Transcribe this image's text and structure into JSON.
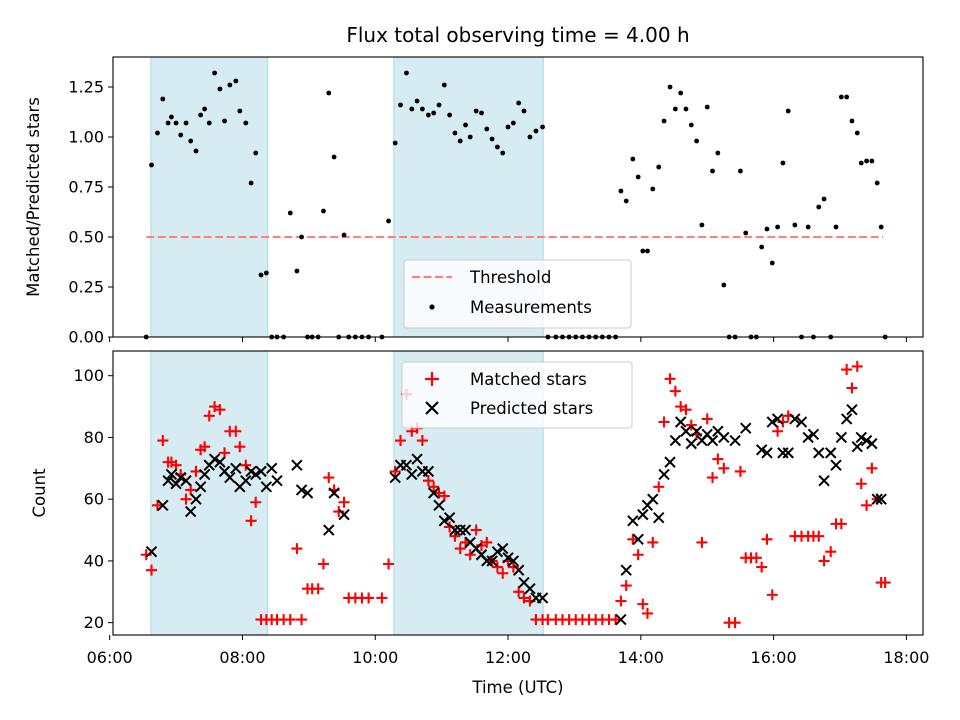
{
  "chart_data": {
    "type": "scatter",
    "title": "Flux total observing time = 4.00 h",
    "xlabel": "Time (UTC)",
    "x_ticks": [
      "06:00",
      "08:00",
      "10:00",
      "12:00",
      "14:00",
      "16:00",
      "18:00"
    ],
    "x_range_hours": [
      6.05,
      18.25
    ],
    "shaded_intervals_hours": [
      [
        6.62,
        8.38
      ],
      [
        10.28,
        12.53
      ]
    ],
    "panels": [
      {
        "ylabel": "Matched/Predicted stars",
        "ylim": [
          0,
          1.4
        ],
        "y_ticks": [
          "0.00",
          "0.25",
          "0.50",
          "0.75",
          "1.00",
          "1.25"
        ],
        "legend": {
          "placement": "lower-center",
          "entries": [
            "Threshold",
            "Measurements"
          ]
        },
        "threshold": {
          "name": "Threshold",
          "value": 0.5,
          "x_range_hours": [
            6.55,
            17.65
          ],
          "color": "#ff7f7f",
          "style": "dashed"
        },
        "measurements": {
          "name": "Measurements",
          "color": "#000000",
          "x": [
            6.55,
            6.63,
            6.72,
            6.8,
            6.88,
            6.93,
            7.0,
            7.07,
            7.15,
            7.22,
            7.3,
            7.37,
            7.43,
            7.5,
            7.58,
            7.66,
            7.73,
            7.81,
            7.9,
            7.96,
            8.05,
            8.13,
            8.2,
            8.28,
            8.36,
            8.44,
            8.52,
            8.62,
            8.72,
            8.82,
            8.89,
            8.98,
            9.05,
            9.14,
            9.22,
            9.3,
            9.38,
            9.45,
            9.53,
            9.6,
            9.7,
            9.8,
            9.9,
            10.1,
            10.2,
            10.3,
            10.38,
            10.47,
            10.55,
            10.63,
            10.71,
            10.8,
            10.88,
            10.96,
            11.04,
            11.12,
            11.2,
            11.28,
            11.36,
            11.43,
            11.52,
            11.6,
            11.68,
            11.76,
            11.84,
            11.92,
            12.0,
            12.08,
            12.16,
            12.24,
            12.33,
            12.42,
            12.52,
            12.6,
            12.72,
            12.82,
            12.92,
            13.02,
            13.12,
            13.22,
            13.32,
            13.42,
            13.52,
            13.62,
            13.7,
            13.78,
            13.88,
            13.96,
            14.03,
            14.1,
            14.18,
            14.27,
            14.35,
            14.44,
            14.52,
            14.6,
            14.68,
            14.76,
            14.84,
            14.92,
            15.0,
            15.08,
            15.16,
            15.25,
            15.33,
            15.42,
            15.5,
            15.58,
            15.66,
            15.74,
            15.82,
            15.9,
            15.98,
            16.06,
            16.14,
            16.22,
            16.32,
            16.42,
            16.52,
            16.6,
            16.68,
            16.76,
            16.86,
            16.94,
            17.02,
            17.1,
            17.18,
            17.26,
            17.32,
            17.4,
            17.48,
            17.56,
            17.62,
            17.68
          ],
          "y": [
            0.0,
            0.86,
            1.02,
            1.19,
            1.07,
            1.1,
            1.07,
            1.01,
            1.07,
            0.98,
            0.93,
            1.11,
            1.14,
            1.07,
            1.32,
            1.24,
            1.08,
            1.26,
            1.28,
            1.13,
            1.07,
            0.77,
            0.92,
            0.31,
            0.32,
            0.0,
            0.0,
            0.0,
            0.62,
            0.33,
            0.5,
            0.0,
            0.0,
            0.0,
            0.63,
            1.22,
            0.9,
            0.0,
            0.51,
            0.0,
            0.0,
            0.0,
            0.0,
            0.0,
            0.58,
            0.97,
            1.16,
            1.32,
            1.14,
            1.18,
            1.14,
            1.11,
            1.12,
            1.16,
            1.26,
            1.11,
            1.02,
            0.98,
            1.06,
            1.0,
            1.13,
            1.12,
            1.04,
            0.99,
            0.95,
            0.92,
            1.05,
            1.07,
            1.17,
            1.13,
            1.0,
            1.03,
            1.05,
            0.0,
            0.0,
            0.0,
            0.0,
            0.0,
            0.0,
            0.0,
            0.0,
            0.0,
            0.0,
            0.0,
            0.73,
            0.68,
            0.89,
            0.8,
            0.43,
            0.43,
            0.74,
            0.85,
            1.08,
            1.25,
            1.14,
            1.22,
            1.14,
            1.06,
            0.98,
            0.56,
            1.15,
            0.83,
            0.92,
            0.26,
            0.0,
            0.0,
            0.83,
            0.52,
            0.0,
            0.0,
            0.45,
            0.54,
            0.37,
            0.55,
            0.87,
            1.13,
            0.56,
            0.0,
            0.55,
            0.0,
            0.65,
            0.69,
            0.0,
            0.55,
            1.2,
            1.2,
            1.08,
            1.02,
            0.87,
            0.88,
            0.88,
            0.77,
            0.55,
            0.0
          ]
        }
      },
      {
        "ylabel": "Count",
        "ylim": [
          16,
          108
        ],
        "y_ticks": [
          "20",
          "40",
          "60",
          "80",
          "100"
        ],
        "legend": {
          "placement": "top-center",
          "entries": [
            "Matched stars",
            "Predicted stars"
          ]
        },
        "matched": {
          "name": "Matched stars",
          "color": "#ff0000",
          "marker": "plus",
          "x": [
            6.55,
            6.63,
            6.72,
            6.8,
            6.88,
            6.93,
            7.0,
            7.07,
            7.15,
            7.22,
            7.3,
            7.37,
            7.43,
            7.5,
            7.58,
            7.66,
            7.73,
            7.81,
            7.9,
            7.96,
            8.05,
            8.13,
            8.2,
            8.28,
            8.36,
            8.44,
            8.52,
            8.62,
            8.72,
            8.82,
            8.89,
            8.98,
            9.05,
            9.14,
            9.22,
            9.3,
            9.38,
            9.45,
            9.53,
            9.6,
            9.7,
            9.8,
            9.9,
            10.1,
            10.2,
            10.3,
            10.38,
            10.47,
            10.55,
            10.63,
            10.71,
            10.8,
            10.88,
            10.96,
            11.04,
            11.12,
            11.2,
            11.28,
            11.36,
            11.43,
            11.52,
            11.6,
            11.68,
            11.76,
            11.84,
            11.92,
            12.0,
            12.08,
            12.16,
            12.24,
            12.33,
            12.42,
            12.52,
            12.6,
            12.72,
            12.82,
            12.92,
            13.02,
            13.12,
            13.22,
            13.32,
            13.42,
            13.52,
            13.62,
            13.7,
            13.78,
            13.88,
            13.96,
            14.03,
            14.1,
            14.18,
            14.27,
            14.35,
            14.44,
            14.52,
            14.6,
            14.68,
            14.76,
            14.84,
            14.92,
            15.0,
            15.08,
            15.16,
            15.25,
            15.33,
            15.42,
            15.5,
            15.58,
            15.66,
            15.74,
            15.82,
            15.9,
            15.98,
            16.06,
            16.14,
            16.22,
            16.32,
            16.42,
            16.52,
            16.6,
            16.68,
            16.76,
            16.86,
            16.94,
            17.02,
            17.1,
            17.18,
            17.26,
            17.32,
            17.4,
            17.48,
            17.56,
            17.62,
            17.68
          ],
          "y": [
            42,
            37,
            58,
            79,
            72,
            72,
            71,
            68,
            60,
            63,
            69,
            76,
            77,
            87,
            90,
            89,
            75,
            82,
            82,
            77,
            71,
            53,
            59,
            21,
            21,
            21,
            21,
            21,
            21,
            44,
            21,
            31,
            31,
            31,
            39,
            67,
            63,
            56,
            59,
            28,
            28,
            28,
            28,
            28,
            39,
            69,
            79,
            94,
            82,
            83,
            79,
            66,
            64,
            62,
            61,
            51,
            48,
            44,
            46,
            42,
            50,
            45,
            46,
            40,
            38,
            36,
            40,
            38,
            30,
            28,
            27,
            21,
            21,
            21,
            21,
            21,
            21,
            21,
            21,
            21,
            21,
            21,
            21,
            21,
            27,
            32,
            47,
            42,
            26,
            23,
            46,
            64,
            85,
            99,
            95,
            90,
            89,
            84,
            81,
            46,
            86,
            67,
            73,
            70,
            20,
            20,
            69,
            41,
            41,
            41,
            38,
            47,
            29,
            82,
            85,
            87,
            48,
            48,
            48,
            48,
            48,
            40,
            43,
            52,
            52,
            102,
            96,
            103,
            65,
            58,
            70,
            60,
            33,
            33
          ]
        },
        "predicted": {
          "name": "Predicted stars",
          "color": "#000000",
          "marker": "x",
          "x": [
            6.63,
            6.8,
            6.88,
            6.93,
            7.0,
            7.07,
            7.15,
            7.22,
            7.3,
            7.37,
            7.43,
            7.5,
            7.58,
            7.66,
            7.73,
            7.81,
            7.9,
            7.96,
            8.05,
            8.13,
            8.2,
            8.28,
            8.36,
            8.44,
            8.52,
            8.82,
            8.89,
            8.98,
            9.3,
            9.38,
            9.53,
            10.3,
            10.38,
            10.47,
            10.55,
            10.63,
            10.71,
            10.8,
            10.88,
            10.96,
            11.04,
            11.12,
            11.2,
            11.28,
            11.36,
            11.43,
            11.52,
            11.6,
            11.68,
            11.76,
            11.84,
            11.92,
            12.0,
            12.08,
            12.16,
            12.24,
            12.33,
            12.42,
            12.52,
            13.7,
            13.78,
            13.88,
            13.96,
            14.03,
            14.1,
            14.18,
            14.27,
            14.35,
            14.44,
            14.52,
            14.6,
            14.68,
            14.76,
            14.84,
            14.92,
            15.0,
            15.08,
            15.16,
            15.25,
            15.42,
            15.58,
            15.82,
            15.9,
            15.98,
            16.06,
            16.14,
            16.22,
            16.32,
            16.42,
            16.52,
            16.6,
            16.68,
            16.76,
            16.86,
            16.94,
            17.02,
            17.1,
            17.18,
            17.26,
            17.32,
            17.4,
            17.48,
            17.56,
            17.62
          ],
          "y": [
            43,
            58,
            66,
            68,
            65,
            67,
            66,
            56,
            60,
            64,
            68,
            71,
            73,
            72,
            69,
            67,
            70,
            64,
            66,
            69,
            68,
            69,
            64,
            70,
            66,
            71,
            63,
            62,
            50,
            62,
            55,
            67,
            71,
            71,
            68,
            73,
            69,
            69,
            62,
            58,
            53,
            54,
            50,
            50,
            50,
            46,
            44,
            42,
            40,
            40,
            43,
            44,
            41,
            40,
            37,
            33,
            31,
            28,
            28,
            21,
            37,
            53,
            47,
            55,
            58,
            60,
            54,
            68,
            72,
            79,
            85,
            82,
            78,
            82,
            79,
            81,
            79,
            82,
            80,
            79,
            83,
            76,
            75,
            85,
            86,
            75,
            75,
            86,
            85,
            80,
            81,
            75,
            66,
            75,
            71,
            80,
            86,
            89,
            77,
            80,
            79,
            78,
            60,
            60
          ]
        }
      }
    ]
  }
}
